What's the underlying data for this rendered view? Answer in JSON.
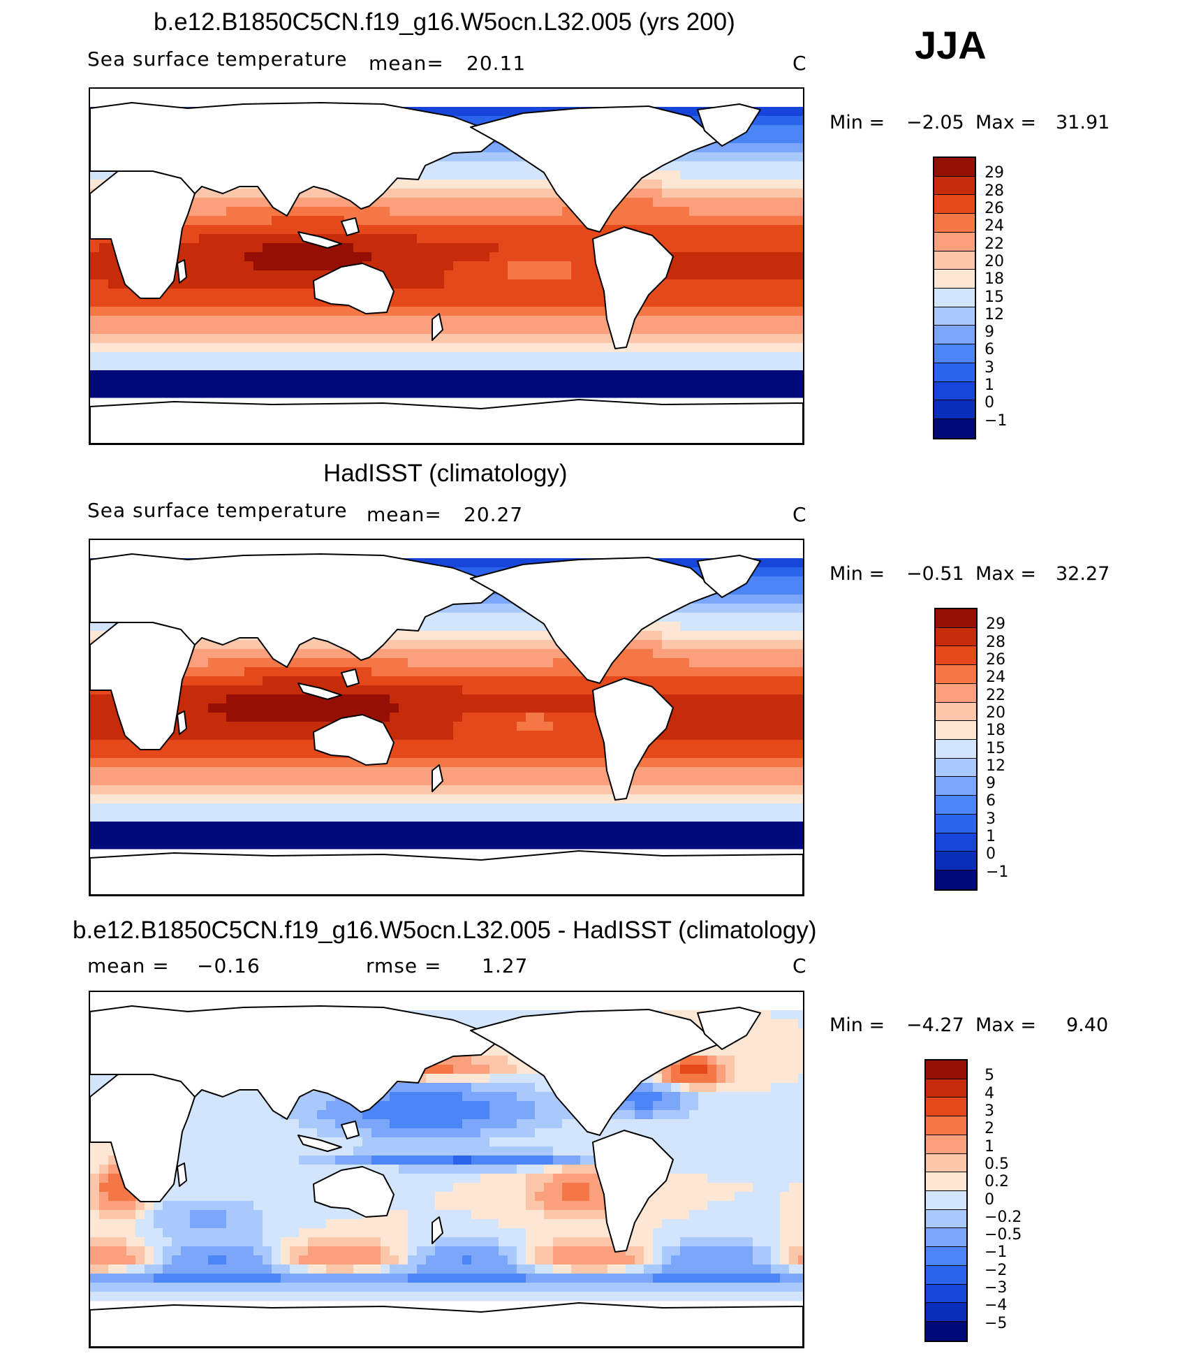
{
  "season": "JJA",
  "colors": {
    "abs": [
      "#000a78",
      "#0a2eb9",
      "#1744d9",
      "#2c63ec",
      "#4c85f5",
      "#7ba6fa",
      "#a9c8fc",
      "#d3e5fd",
      "#fde6d4",
      "#fcc6aa",
      "#fba07c",
      "#f57745",
      "#e5481b",
      "#c62b0a",
      "#960f05"
    ],
    "diff": [
      "#000a78",
      "#0a2eb9",
      "#1744d9",
      "#2c63ec",
      "#4c85f5",
      "#7ba6fa",
      "#a9c8fc",
      "#d3e5fd",
      "#fde6d4",
      "#fcc6aa",
      "#fba07c",
      "#f57745",
      "#e5481b",
      "#c62b0a",
      "#960f05"
    ]
  },
  "panels": [
    {
      "title": "b.e12.B1850C5CN.f19_g16.W5ocn.L32.005 (yrs 200)",
      "variable": "Sea surface temperature",
      "stat_label": "mean=",
      "stat_value": "20.11",
      "units": "C",
      "min_label": "Min =",
      "min_value": "−2.05",
      "max_label": "Max =",
      "max_value": "31.91",
      "levels": [
        "29",
        "28",
        "26",
        "24",
        "22",
        "20",
        "18",
        "15",
        "12",
        "9",
        "6",
        "3",
        "1",
        "0",
        "−1"
      ]
    },
    {
      "title": "HadISST (climatology)",
      "variable": "Sea surface temperature",
      "stat_label": "mean=",
      "stat_value": "20.27",
      "units": "C",
      "min_label": "Min =",
      "min_value": "−0.51",
      "max_label": "Max =",
      "max_value": "32.27",
      "levels": [
        "29",
        "28",
        "26",
        "24",
        "22",
        "20",
        "18",
        "15",
        "12",
        "9",
        "6",
        "3",
        "1",
        "0",
        "−1"
      ]
    },
    {
      "title": "b.e12.B1850C5CN.f19_g16.W5ocn.L32.005 - HadISST (climatology)",
      "mean_label": "mean =",
      "mean_value": "−0.16",
      "rmse_label": "rmse =",
      "rmse_value": "1.27",
      "units": "C",
      "min_label": "Min =",
      "min_value": "−4.27",
      "max_label": "Max =",
      "max_value": "9.40",
      "levels": [
        "5",
        "4",
        "3",
        "2",
        "1",
        "0.5",
        "0.2",
        "0",
        "−0.2",
        "−0.5",
        "−1",
        "−2",
        "−3",
        "−4",
        "−5"
      ]
    }
  ]
}
